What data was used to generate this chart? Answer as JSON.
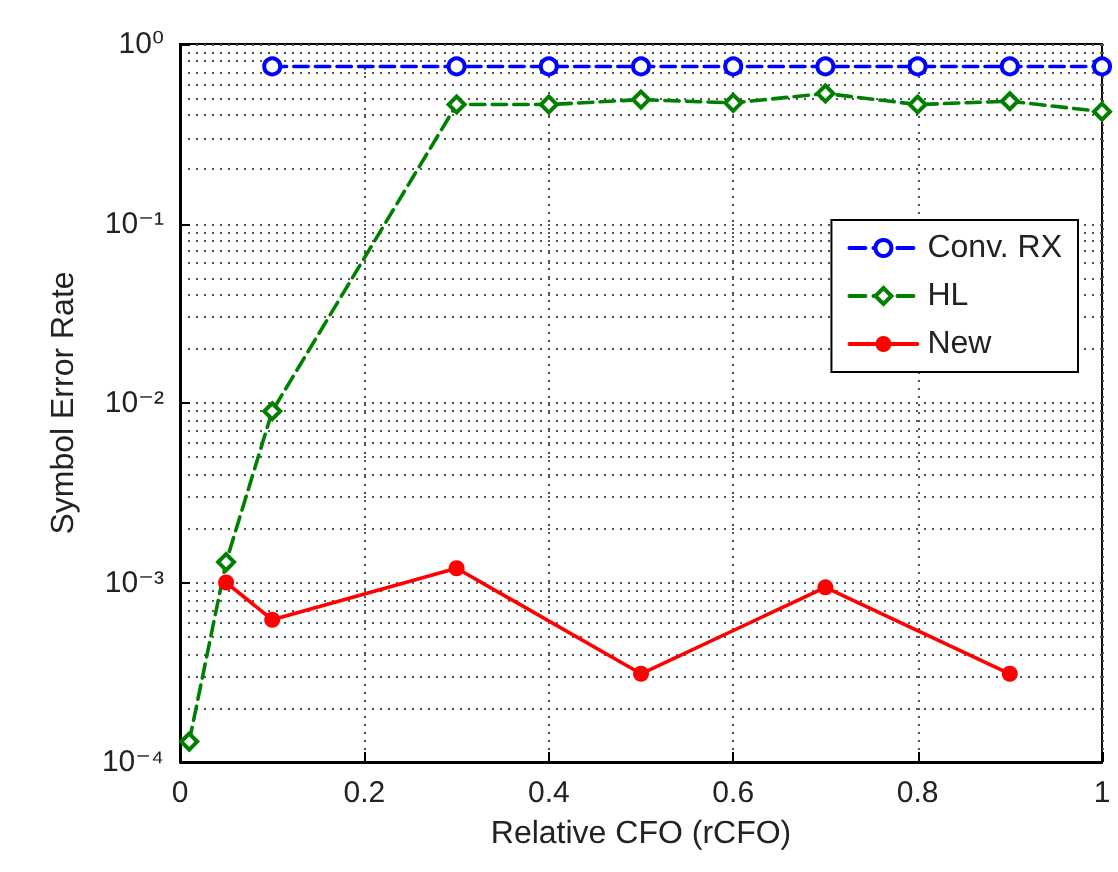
{
  "chart_data": {
    "type": "line",
    "xlabel": "Relative CFO (rCFO)",
    "ylabel": "Symbol Error Rate",
    "log": "y",
    "grid": true,
    "legend": "right",
    "xlim": [
      0,
      1
    ],
    "xticks": [
      0,
      0.2,
      0.4,
      0.6,
      0.8,
      1
    ],
    "ylim": [
      0.0001,
      1
    ],
    "yticks": [
      {
        "value": 0.0001,
        "label": "10⁻⁴"
      },
      {
        "value": 0.001,
        "label": "10⁻³"
      },
      {
        "value": 0.01,
        "label": "10⁻²"
      },
      {
        "value": 0.1,
        "label": "10⁻¹"
      },
      {
        "value": 1,
        "label": "10⁰"
      }
    ],
    "series": [
      {
        "name": "Conv. RX",
        "color": "#0000ff",
        "marker": "circle",
        "line_style": "dashed",
        "x": [
          0.1,
          0.3,
          0.4,
          0.5,
          0.6,
          0.7,
          0.8,
          0.9,
          1.0
        ],
        "values": [
          0.75,
          0.75,
          0.75,
          0.75,
          0.75,
          0.75,
          0.75,
          0.75,
          0.75
        ]
      },
      {
        "name": "HL",
        "color": "#008000",
        "marker": "diamond",
        "line_style": "dashed",
        "x": [
          0.01,
          0.05,
          0.1,
          0.3,
          0.4,
          0.5,
          0.6,
          0.7,
          0.8,
          0.9,
          1.0
        ],
        "values": [
          0.00013,
          0.0013,
          0.009,
          0.46,
          0.46,
          0.49,
          0.47,
          0.53,
          0.46,
          0.48,
          0.42
        ]
      },
      {
        "name": "New",
        "color": "#ff0000",
        "marker": "circle",
        "line_style": "solid",
        "x": [
          0.05,
          0.1,
          0.3,
          0.5,
          0.7,
          0.9
        ],
        "values": [
          0.001,
          0.00062,
          0.0012,
          0.00031,
          0.00094,
          0.00031
        ]
      }
    ]
  }
}
